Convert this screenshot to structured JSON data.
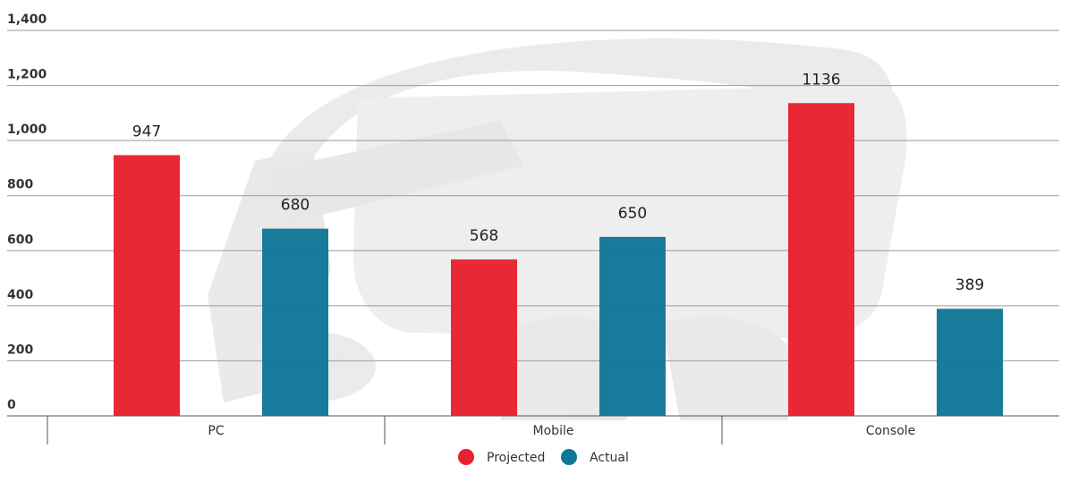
{
  "chart_data": {
    "type": "bar",
    "categories": [
      "PC",
      "Mobile",
      "Console"
    ],
    "series": [
      {
        "name": "Projected",
        "values": [
          947,
          568,
          1136
        ],
        "color": "#e8212f"
      },
      {
        "name": "Actual",
        "values": [
          680,
          650,
          389
        ],
        "color": "#117798"
      }
    ],
    "data_labels": [
      [
        "947",
        "680"
      ],
      [
        "568",
        "650"
      ],
      [
        "1136",
        "389"
      ]
    ],
    "yticks": [
      "0",
      "200",
      "400",
      "600",
      "800",
      "1,000",
      "1,200",
      "1,400"
    ],
    "ytick_values": [
      0,
      200,
      400,
      600,
      800,
      1000,
      1200,
      1400
    ],
    "ylim": [
      0,
      1400
    ],
    "grid": true,
    "legend_position": "bottom-center",
    "background": "VR headset watermark image"
  }
}
